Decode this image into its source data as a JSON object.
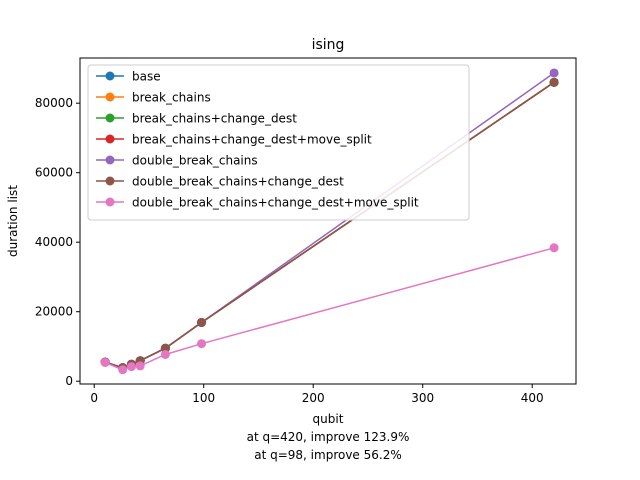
{
  "chart_data": {
    "type": "line",
    "title": "ising",
    "xlabel": "qubit",
    "ylabel": "duration list",
    "xlim": [
      -13,
      440
    ],
    "ylim": [
      -800,
      93000
    ],
    "xticks": [
      0,
      100,
      200,
      300,
      400
    ],
    "yticks": [
      0,
      20000,
      40000,
      60000,
      80000
    ],
    "grid": false,
    "legend_position": "top-left",
    "annotations": [
      "at q=420, improve 123.9%",
      "at q=98, improve 56.2%"
    ],
    "series": [
      {
        "name": "base",
        "color": "#1f77b4",
        "x": [
          10,
          26,
          34,
          42,
          65,
          98,
          420
        ],
        "y": [
          5500,
          3900,
          4900,
          5900,
          9500,
          16900,
          86000
        ]
      },
      {
        "name": "break_chains",
        "color": "#ff7f0e",
        "x": [
          10,
          26,
          34,
          42,
          65,
          98,
          420
        ],
        "y": [
          5500,
          3900,
          4900,
          5900,
          9500,
          16900,
          86000
        ]
      },
      {
        "name": "break_chains+change_dest",
        "color": "#2ca02c",
        "x": [
          10,
          26,
          34,
          42,
          65,
          98,
          420
        ],
        "y": [
          5500,
          3900,
          4900,
          5900,
          9500,
          16900,
          86000
        ]
      },
      {
        "name": "break_chains+change_dest+move_split",
        "color": "#d62728",
        "x": [
          10,
          26,
          34,
          42,
          65,
          98,
          420
        ],
        "y": [
          5500,
          3900,
          4900,
          5900,
          9500,
          16900,
          86000
        ]
      },
      {
        "name": "double_break_chains",
        "color": "#9467bd",
        "x": [
          10,
          26,
          34,
          42,
          65,
          98,
          420
        ],
        "y": [
          5500,
          3900,
          4900,
          5900,
          9500,
          16900,
          88700
        ]
      },
      {
        "name": "double_break_chains+change_dest",
        "color": "#8c564b",
        "x": [
          10,
          26,
          34,
          42,
          65,
          98,
          420
        ],
        "y": [
          5500,
          3900,
          4900,
          5900,
          9500,
          16900,
          86000
        ]
      },
      {
        "name": "double_break_chains+change_dest+move_split",
        "color": "#e377c2",
        "x": [
          10,
          26,
          34,
          42,
          65,
          98,
          420
        ],
        "y": [
          5400,
          3300,
          4200,
          4400,
          7700,
          10800,
          38400
        ]
      }
    ]
  }
}
